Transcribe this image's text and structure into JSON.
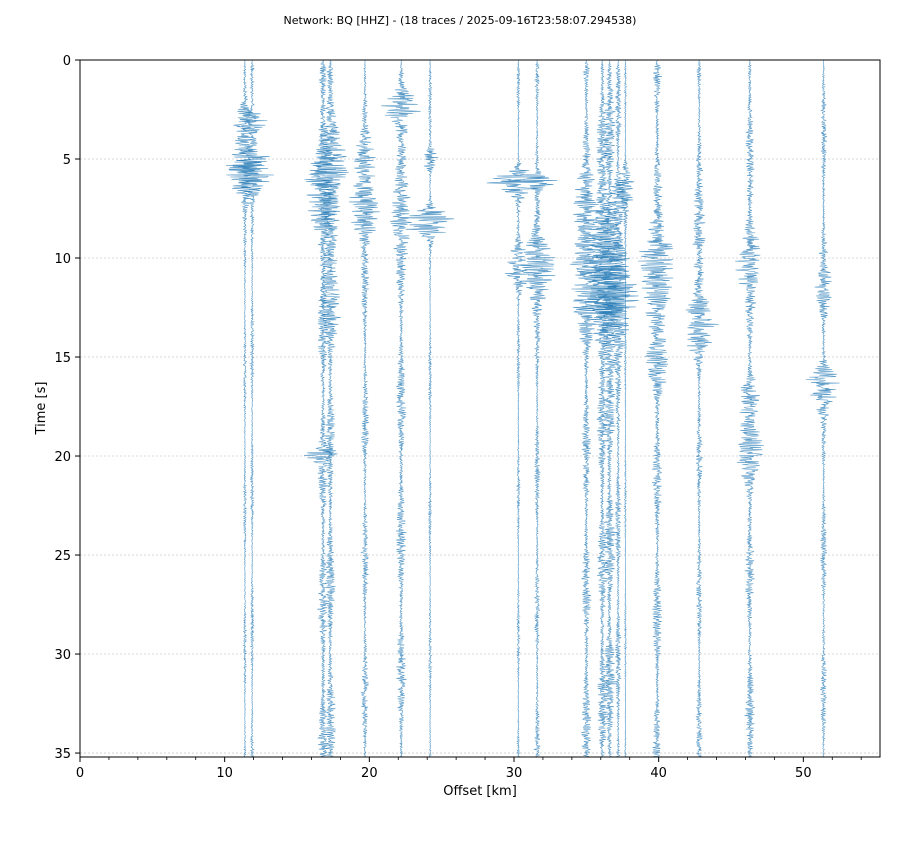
{
  "chart_data": {
    "type": "line",
    "title": "Network: BQ [HHZ] - (18 traces / 2025-09-16T23:58:07.294538)",
    "xlabel": "Offset [km]",
    "ylabel": "Time [s]",
    "xlim": [
      0,
      55.3
    ],
    "ylim": [
      35.2,
      0
    ],
    "y_inverted": true,
    "xticks": [
      0,
      10,
      20,
      30,
      40,
      50
    ],
    "yticks": [
      0,
      5,
      10,
      15,
      20,
      25,
      30,
      35
    ],
    "grid": "horizontal",
    "trace_color": "#1f77b4",
    "grid_color": "#cccccc",
    "series": [
      {
        "offset": 11.4,
        "amp": 0.3,
        "bursts": [
          [
            3.2,
            0.8,
            1.2
          ],
          [
            5.5,
            1.3,
            2.0
          ]
        ]
      },
      {
        "offset": 11.9,
        "amp": 0.35,
        "bursts": [
          [
            3.1,
            0.5,
            1.5
          ],
          [
            5.5,
            1.0,
            2.5
          ]
        ]
      },
      {
        "offset": 16.8,
        "amp": 1.0,
        "bursts": [
          [
            6.5,
            2.5,
            1.3
          ],
          [
            20.0,
            0.3,
            1.5
          ]
        ]
      },
      {
        "offset": 17.3,
        "amp": 1.0,
        "bursts": [
          [
            6.0,
            3.0,
            1.4
          ],
          [
            12.0,
            2.0,
            0.6
          ]
        ]
      },
      {
        "offset": 19.7,
        "amp": 0.7,
        "bursts": [
          [
            7.5,
            1.5,
            1.6
          ],
          [
            5.0,
            1.0,
            0.8
          ]
        ]
      },
      {
        "offset": 22.2,
        "amp": 0.95,
        "bursts": [
          [
            2.4,
            0.8,
            1.6
          ],
          [
            7.5,
            2.0,
            0.9
          ]
        ]
      },
      {
        "offset": 24.2,
        "amp": 0.3,
        "bursts": [
          [
            8.2,
            0.6,
            3.5
          ],
          [
            5.0,
            0.5,
            1.0
          ]
        ]
      },
      {
        "offset": 30.3,
        "amp": 0.3,
        "bursts": [
          [
            6.2,
            0.6,
            3.0
          ],
          [
            10.5,
            1.0,
            1.5
          ]
        ]
      },
      {
        "offset": 31.6,
        "amp": 0.5,
        "bursts": [
          [
            6.1,
            0.3,
            3.5
          ],
          [
            10.5,
            1.5,
            2.0
          ]
        ]
      },
      {
        "offset": 35.0,
        "amp": 0.9,
        "bursts": [
          [
            11.0,
            2.5,
            1.5
          ],
          [
            7.5,
            1.5,
            1.0
          ]
        ]
      },
      {
        "offset": 36.1,
        "amp": 1.1,
        "bursts": [
          [
            11.5,
            2.5,
            1.5
          ],
          [
            8.5,
            1.5,
            1.0
          ]
        ]
      },
      {
        "offset": 36.6,
        "amp": 1.2,
        "bursts": [
          [
            12.0,
            2.5,
            1.5
          ],
          [
            9.0,
            1.5,
            0.8
          ]
        ]
      },
      {
        "offset": 37.2,
        "amp": 0.6,
        "bursts": [
          [
            12.0,
            2.0,
            2.0
          ],
          [
            7.0,
            1.0,
            1.0
          ]
        ]
      },
      {
        "offset": 37.7,
        "amp": 0.2,
        "bursts": [
          [
            6.5,
            1.0,
            1.0
          ]
        ]
      },
      {
        "offset": 39.9,
        "amp": 0.9,
        "bursts": [
          [
            11.0,
            2.0,
            1.5
          ],
          [
            15.5,
            1.5,
            0.8
          ],
          [
            9.5,
            1.0,
            0.8
          ]
        ]
      },
      {
        "offset": 42.8,
        "amp": 0.6,
        "bursts": [
          [
            13.5,
            1.5,
            1.5
          ],
          [
            9.0,
            2.0,
            0.6
          ]
        ]
      },
      {
        "offset": 46.3,
        "amp": 0.9,
        "bursts": [
          [
            10.0,
            1.5,
            1.2
          ],
          [
            20.0,
            1.5,
            1.0
          ],
          [
            17.0,
            1.0,
            0.8
          ]
        ]
      },
      {
        "offset": 51.4,
        "amp": 0.6,
        "bursts": [
          [
            16.5,
            1.0,
            1.8
          ],
          [
            11.5,
            1.5,
            0.6
          ]
        ]
      }
    ]
  }
}
